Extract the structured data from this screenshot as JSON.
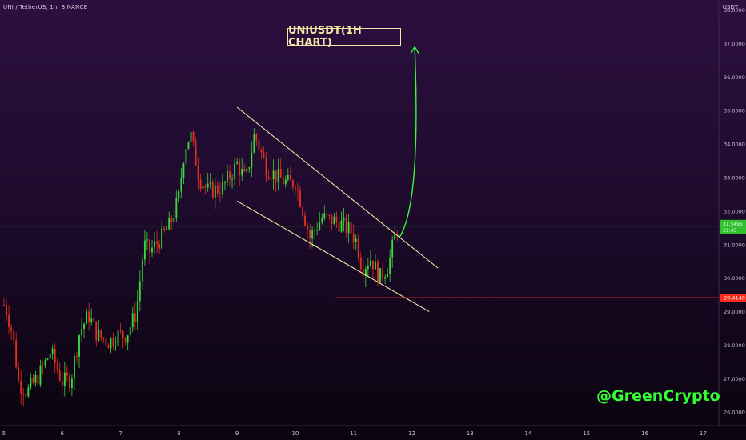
{
  "header": {
    "symbol_line": "UNI / TetherUS, 1h, BINANCE",
    "currency": "USDT"
  },
  "title": "UNIUSDT(1H CHART)",
  "watermark": "@GreenCrypto",
  "colors": {
    "up": "#3ad83a",
    "down": "#e0301e",
    "channel": "#efe7a6",
    "support": "#ff2a1a",
    "arrow": "#33ff33",
    "axis_text": "#c9bfd4",
    "last_price_bg": "#2fbf2f"
  },
  "chart_data": {
    "type": "candlestick",
    "title": "UNIUSDT(1H CHART)",
    "x_tick_labels": [
      "5",
      "6",
      "7",
      "8",
      "9",
      "10",
      "11",
      "12",
      "13",
      "14",
      "15",
      "16",
      "17"
    ],
    "y_tick_labels": [
      "26.0000",
      "27.0000",
      "28.0000",
      "29.0000",
      "30.0000",
      "31.0000",
      "32.0000",
      "33.0000",
      "34.0000",
      "35.0000",
      "36.0000",
      "37.0000",
      "38.0000"
    ],
    "ylim": [
      25.6,
      38.3
    ],
    "xlim_days": [
      5,
      17.05
    ],
    "last_price": "31.5495",
    "last_price_sub": "29:45",
    "support_level": "29.4140",
    "support_value": 29.414,
    "anchors": [
      [
        5.0,
        29.2
      ],
      [
        5.05,
        29.0
      ],
      [
        5.15,
        28.3
      ],
      [
        5.25,
        26.9
      ],
      [
        5.4,
        26.6
      ],
      [
        5.6,
        27.1
      ],
      [
        5.8,
        27.8
      ],
      [
        6.0,
        26.9
      ],
      [
        6.15,
        27.0
      ],
      [
        6.3,
        28.4
      ],
      [
        6.45,
        28.9
      ],
      [
        6.6,
        28.3
      ],
      [
        6.8,
        28.1
      ],
      [
        6.95,
        28.3
      ],
      [
        7.1,
        28.3
      ],
      [
        7.25,
        28.9
      ],
      [
        7.3,
        29.4
      ],
      [
        7.4,
        31.0
      ],
      [
        7.5,
        30.8
      ],
      [
        7.7,
        31.2
      ],
      [
        7.85,
        31.6
      ],
      [
        8.0,
        32.4
      ],
      [
        8.1,
        33.9
      ],
      [
        8.2,
        34.3
      ],
      [
        8.35,
        33.0
      ],
      [
        8.5,
        32.6
      ],
      [
        8.75,
        32.7
      ],
      [
        9.0,
        33.4
      ],
      [
        9.15,
        32.9
      ],
      [
        9.3,
        34.3
      ],
      [
        9.5,
        33.3
      ],
      [
        9.7,
        33.0
      ],
      [
        9.9,
        32.8
      ],
      [
        10.0,
        32.9
      ],
      [
        10.15,
        31.9
      ],
      [
        10.25,
        31.2
      ],
      [
        10.45,
        31.8
      ],
      [
        10.7,
        31.7
      ],
      [
        10.8,
        31.6
      ],
      [
        10.95,
        31.4
      ],
      [
        11.05,
        31.1
      ],
      [
        11.15,
        30.3
      ],
      [
        11.3,
        30.6
      ],
      [
        11.45,
        30.0
      ],
      [
        11.6,
        30.4
      ],
      [
        11.72,
        31.3
      ],
      [
        11.76,
        31.55
      ]
    ],
    "channel": {
      "upper": [
        [
          9.0,
          35.1
        ],
        [
          12.45,
          30.3
        ]
      ],
      "lower": [
        [
          9.0,
          32.3
        ],
        [
          12.3,
          29.0
        ]
      ]
    },
    "projection_arrow": {
      "from": [
        11.78,
        31.2
      ],
      "to": [
        12.05,
        36.9
      ]
    }
  }
}
